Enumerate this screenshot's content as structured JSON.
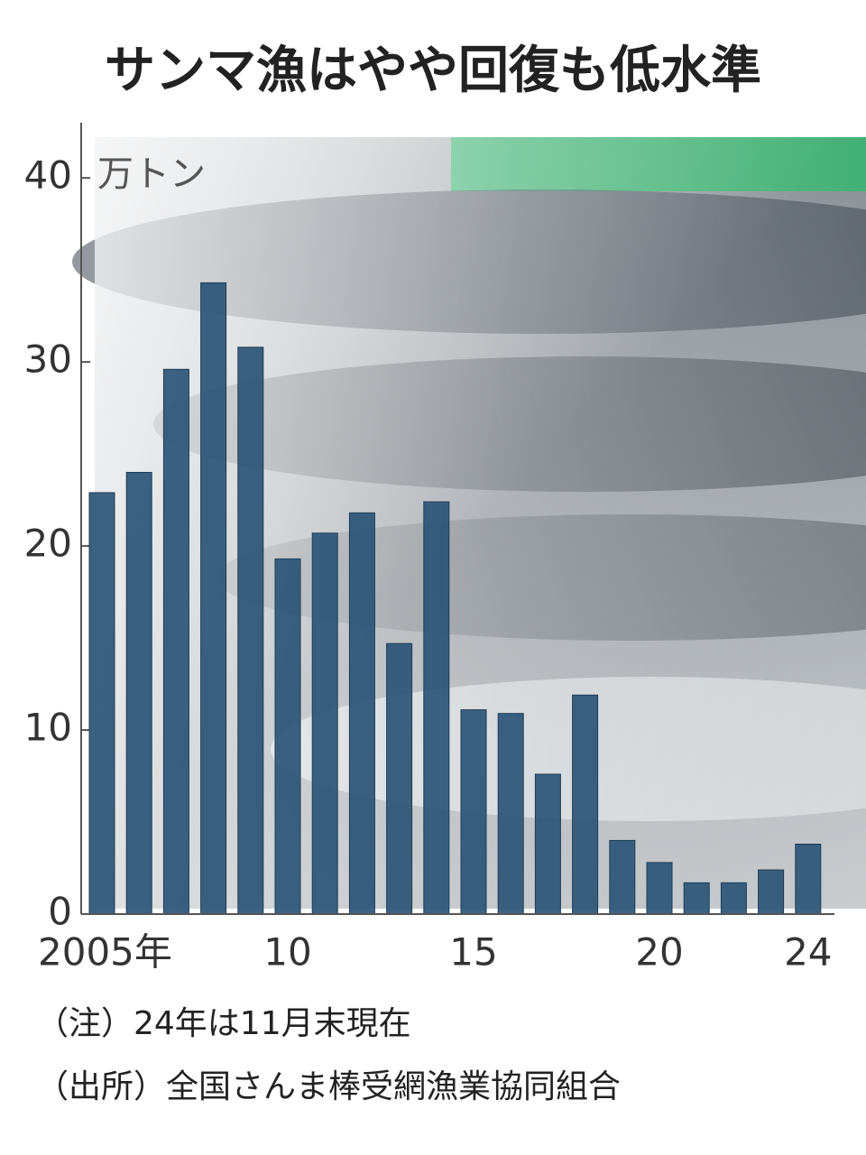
{
  "chart_data": {
    "type": "bar",
    "title": "サンマ漁はやや回復も低水準",
    "unit_label": "万トン",
    "categories": [
      "2005年",
      null,
      null,
      null,
      null,
      "10",
      null,
      null,
      null,
      null,
      "15",
      null,
      null,
      null,
      null,
      "20",
      null,
      null,
      null,
      "24"
    ],
    "values": [
      22.9,
      24.0,
      29.6,
      34.3,
      30.8,
      19.3,
      20.7,
      21.8,
      14.7,
      22.4,
      11.1,
      10.9,
      7.6,
      11.9,
      4.0,
      2.8,
      1.7,
      1.7,
      2.4,
      3.8
    ],
    "color": "#2b5577",
    "ylim": [
      0,
      43
    ],
    "yticks": [
      0,
      10,
      20,
      30,
      40
    ],
    "notes": [
      "（注）24年は11月末現在",
      "（出所）全国さんま棒受網漁業協同組合"
    ]
  }
}
